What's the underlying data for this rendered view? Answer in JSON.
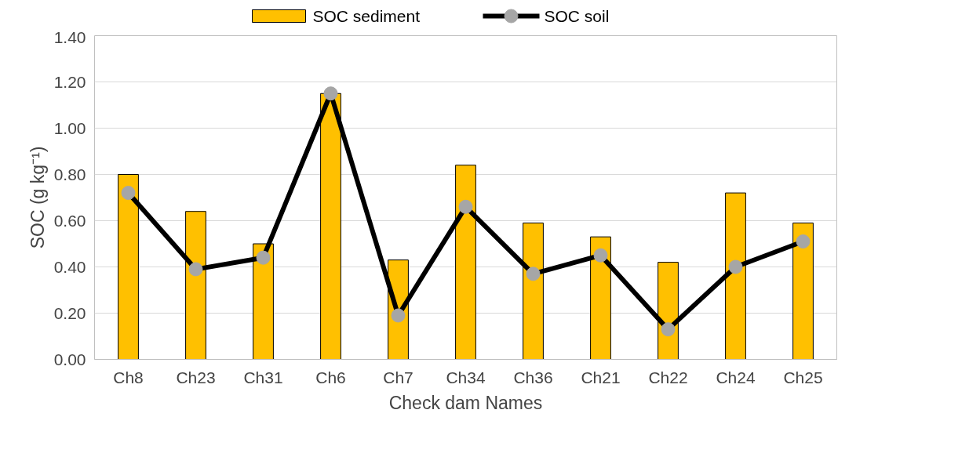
{
  "chart_data": {
    "type": "bar",
    "xlabel": "Check dam Names",
    "ylabel": "SOC (g kg⁻¹)",
    "categories": [
      "Ch8",
      "Ch23",
      "Ch31",
      "Ch6",
      "Ch7",
      "Ch34",
      "Ch36",
      "Ch21",
      "Ch22",
      "Ch24",
      "Ch25"
    ],
    "series": [
      {
        "name": "SOC sediment",
        "type": "bar",
        "color": "#ffc000",
        "values": [
          0.8,
          0.64,
          0.5,
          1.15,
          0.43,
          0.84,
          0.59,
          0.53,
          0.42,
          0.72,
          0.59
        ]
      },
      {
        "name": "SOC soil",
        "type": "line",
        "color": "#000000",
        "marker": "circle",
        "values": [
          0.72,
          0.39,
          0.44,
          1.15,
          0.19,
          0.66,
          0.37,
          0.45,
          0.13,
          0.4,
          0.51
        ]
      }
    ],
    "ylim": [
      0,
      1.4
    ],
    "yticks": [
      {
        "value": 0,
        "label": "0.00"
      },
      {
        "value": 0.2,
        "label": "0.20"
      },
      {
        "value": 0.4,
        "label": "0.40"
      },
      {
        "value": 0.6,
        "label": "0.60"
      },
      {
        "value": 0.8,
        "label": "0.80"
      },
      {
        "value": 1.0,
        "label": "1.00"
      },
      {
        "value": 1.2,
        "label": "1.20"
      },
      {
        "value": 1.4,
        "label": "1.40"
      }
    ],
    "grid": "y",
    "legend": "top"
  }
}
